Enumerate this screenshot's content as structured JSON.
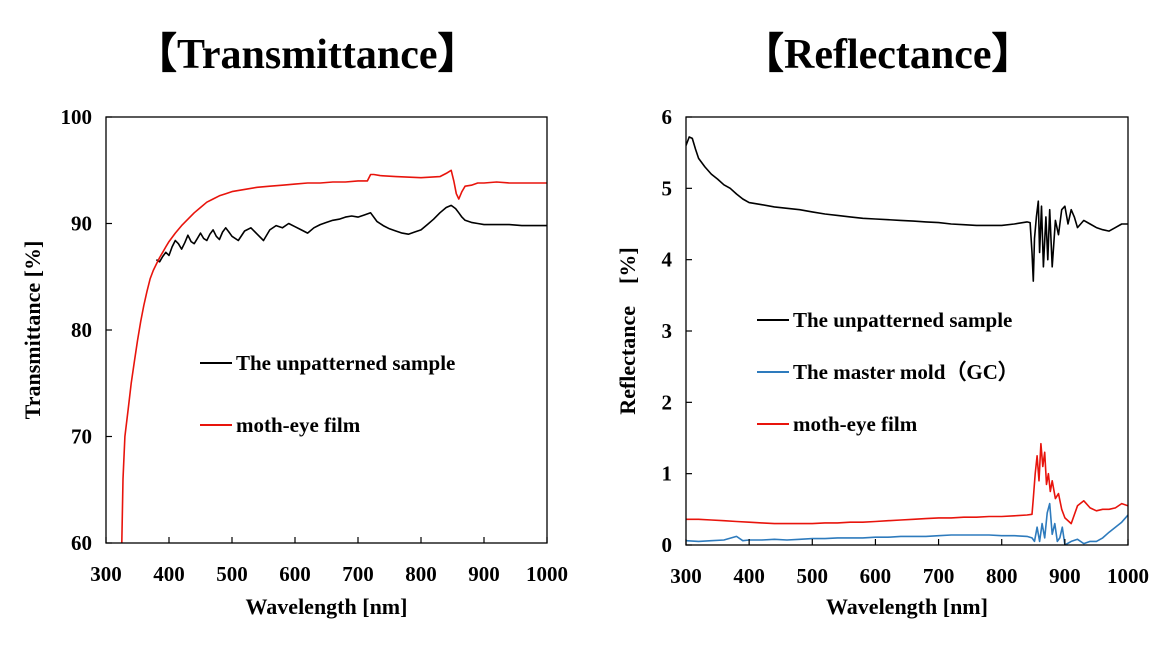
{
  "chart_data": [
    {
      "type": "line",
      "title": "【Transmittance】",
      "xlabel": "Wavelength [nm]",
      "ylabel": "Transmittance [%]",
      "xlim": [
        300,
        1000
      ],
      "ylim": [
        60,
        100
      ],
      "xticks": [
        "300",
        "400",
        "500",
        "600",
        "700",
        "800",
        "900",
        "1000"
      ],
      "yticks": [
        "60",
        "70",
        "80",
        "90",
        "100"
      ],
      "grid": false,
      "legend_position": "center-right inside plot",
      "series": [
        {
          "name": "The unpatterned sample",
          "color": "#000000",
          "x": [
            380,
            385,
            390,
            395,
            400,
            405,
            410,
            415,
            420,
            425,
            430,
            435,
            440,
            445,
            450,
            455,
            460,
            465,
            470,
            475,
            480,
            485,
            490,
            495,
            500,
            510,
            520,
            530,
            540,
            550,
            560,
            570,
            580,
            590,
            600,
            610,
            620,
            630,
            640,
            650,
            660,
            670,
            680,
            690,
            700,
            710,
            720,
            730,
            740,
            750,
            760,
            770,
            780,
            790,
            800,
            810,
            820,
            830,
            840,
            848,
            855,
            860,
            865,
            870,
            880,
            890,
            900,
            920,
            940,
            960,
            980,
            1000
          ],
          "y": [
            86.6,
            86.4,
            86.9,
            87.3,
            87.0,
            87.8,
            88.4,
            88.1,
            87.6,
            88.2,
            88.9,
            88.3,
            88.1,
            88.6,
            89.1,
            88.6,
            88.4,
            89.0,
            89.4,
            88.8,
            88.5,
            89.2,
            89.6,
            89.2,
            88.8,
            88.4,
            89.3,
            89.6,
            89.0,
            88.4,
            89.4,
            89.8,
            89.6,
            90.0,
            89.7,
            89.4,
            89.1,
            89.6,
            89.9,
            90.1,
            90.3,
            90.4,
            90.6,
            90.7,
            90.6,
            90.8,
            91.0,
            90.2,
            89.8,
            89.5,
            89.3,
            89.1,
            89.0,
            89.2,
            89.4,
            89.9,
            90.4,
            91.0,
            91.5,
            91.7,
            91.4,
            91.0,
            90.6,
            90.3,
            90.1,
            90.0,
            89.9,
            89.9,
            89.9,
            89.8,
            89.8,
            89.8
          ]
        },
        {
          "name": "moth-eye film",
          "color": "#e8140c",
          "x": [
            325,
            327,
            330,
            335,
            340,
            345,
            350,
            355,
            360,
            365,
            370,
            375,
            380,
            385,
            390,
            395,
            400,
            410,
            420,
            430,
            440,
            450,
            460,
            470,
            480,
            490,
            500,
            520,
            540,
            560,
            580,
            600,
            620,
            640,
            660,
            680,
            700,
            715,
            720,
            725,
            735,
            760,
            800,
            830,
            840,
            848,
            852,
            856,
            860,
            865,
            870,
            880,
            890,
            900,
            920,
            940,
            960,
            980,
            1000
          ],
          "y": [
            60.0,
            66.0,
            70.0,
            72.5,
            75.0,
            77.0,
            79.0,
            80.8,
            82.3,
            83.6,
            84.8,
            85.6,
            86.2,
            86.8,
            87.3,
            87.8,
            88.3,
            89.1,
            89.8,
            90.4,
            91.0,
            91.5,
            92.0,
            92.3,
            92.6,
            92.8,
            93.0,
            93.2,
            93.4,
            93.5,
            93.6,
            93.7,
            93.8,
            93.8,
            93.9,
            93.9,
            94.0,
            94.0,
            94.6,
            94.6,
            94.5,
            94.4,
            94.3,
            94.4,
            94.7,
            95.0,
            94.0,
            92.8,
            92.3,
            93.0,
            93.5,
            93.6,
            93.8,
            93.8,
            93.9,
            93.8,
            93.8,
            93.8,
            93.8
          ]
        }
      ]
    },
    {
      "type": "line",
      "title": "【Reflectance】",
      "xlabel": "Wavelength [nm]",
      "ylabel": "Reflectance　[%]",
      "xlim": [
        300,
        1000
      ],
      "ylim": [
        0,
        6
      ],
      "xticks": [
        "300",
        "400",
        "500",
        "600",
        "700",
        "800",
        "900",
        "1000"
      ],
      "yticks": [
        "0",
        "1",
        "2",
        "3",
        "4",
        "5",
        "6"
      ],
      "grid": false,
      "legend_position": "center-right inside plot",
      "series": [
        {
          "name": "The unpatterned sample",
          "color": "#000000",
          "x": [
            300,
            305,
            310,
            315,
            320,
            330,
            340,
            350,
            360,
            370,
            380,
            390,
            400,
            420,
            440,
            460,
            480,
            500,
            520,
            540,
            560,
            580,
            600,
            620,
            640,
            660,
            680,
            700,
            720,
            740,
            760,
            780,
            800,
            820,
            840,
            845,
            848,
            850,
            852,
            855,
            858,
            860,
            863,
            866,
            870,
            873,
            876,
            880,
            885,
            890,
            895,
            900,
            905,
            910,
            915,
            920,
            930,
            940,
            950,
            960,
            970,
            980,
            990,
            1000
          ],
          "y": [
            5.6,
            5.72,
            5.7,
            5.55,
            5.42,
            5.3,
            5.2,
            5.13,
            5.05,
            5.0,
            4.92,
            4.85,
            4.8,
            4.77,
            4.74,
            4.72,
            4.7,
            4.67,
            4.64,
            4.62,
            4.6,
            4.58,
            4.57,
            4.56,
            4.55,
            4.54,
            4.53,
            4.52,
            4.5,
            4.49,
            4.48,
            4.48,
            4.48,
            4.5,
            4.53,
            4.52,
            4.1,
            3.7,
            4.3,
            4.6,
            4.82,
            4.1,
            4.75,
            3.9,
            4.6,
            4.0,
            4.7,
            3.9,
            4.55,
            4.35,
            4.7,
            4.75,
            4.5,
            4.7,
            4.6,
            4.45,
            4.55,
            4.5,
            4.45,
            4.42,
            4.4,
            4.45,
            4.5,
            4.5
          ]
        },
        {
          "name": "The master mold（GC）",
          "color": "#2e7bbd",
          "x": [
            300,
            320,
            340,
            360,
            380,
            390,
            400,
            420,
            440,
            460,
            480,
            500,
            520,
            540,
            560,
            580,
            600,
            620,
            640,
            660,
            680,
            700,
            720,
            740,
            760,
            780,
            800,
            820,
            840,
            848,
            852,
            856,
            860,
            864,
            868,
            872,
            876,
            880,
            884,
            888,
            892,
            896,
            900,
            910,
            920,
            930,
            940,
            950,
            960,
            970,
            980,
            990,
            1000
          ],
          "y": [
            0.06,
            0.05,
            0.06,
            0.07,
            0.12,
            0.06,
            0.07,
            0.07,
            0.08,
            0.07,
            0.08,
            0.09,
            0.09,
            0.1,
            0.1,
            0.1,
            0.11,
            0.11,
            0.12,
            0.12,
            0.12,
            0.13,
            0.14,
            0.14,
            0.14,
            0.14,
            0.13,
            0.13,
            0.12,
            0.1,
            0.05,
            0.25,
            0.05,
            0.3,
            0.1,
            0.45,
            0.58,
            0.15,
            0.3,
            0.05,
            0.1,
            0.25,
            0.0,
            0.05,
            0.08,
            0.02,
            0.05,
            0.05,
            0.1,
            0.18,
            0.25,
            0.32,
            0.42
          ]
        },
        {
          "name": "moth-eye film",
          "color": "#e8140c",
          "x": [
            300,
            320,
            340,
            360,
            380,
            400,
            420,
            440,
            460,
            480,
            500,
            520,
            540,
            560,
            580,
            600,
            620,
            640,
            660,
            680,
            700,
            720,
            740,
            760,
            780,
            800,
            820,
            840,
            848,
            850,
            853,
            856,
            859,
            862,
            865,
            868,
            871,
            874,
            877,
            880,
            885,
            890,
            895,
            900,
            910,
            920,
            930,
            940,
            950,
            960,
            970,
            980,
            990,
            1000
          ],
          "y": [
            0.36,
            0.36,
            0.35,
            0.34,
            0.33,
            0.32,
            0.31,
            0.3,
            0.3,
            0.3,
            0.3,
            0.31,
            0.31,
            0.32,
            0.32,
            0.33,
            0.34,
            0.35,
            0.36,
            0.37,
            0.38,
            0.38,
            0.39,
            0.39,
            0.4,
            0.4,
            0.41,
            0.42,
            0.43,
            0.65,
            1.0,
            1.25,
            0.9,
            1.42,
            1.1,
            1.3,
            0.85,
            1.0,
            0.75,
            0.9,
            0.65,
            0.72,
            0.5,
            0.38,
            0.3,
            0.55,
            0.62,
            0.52,
            0.48,
            0.5,
            0.5,
            0.52,
            0.58,
            0.55
          ]
        }
      ]
    }
  ]
}
